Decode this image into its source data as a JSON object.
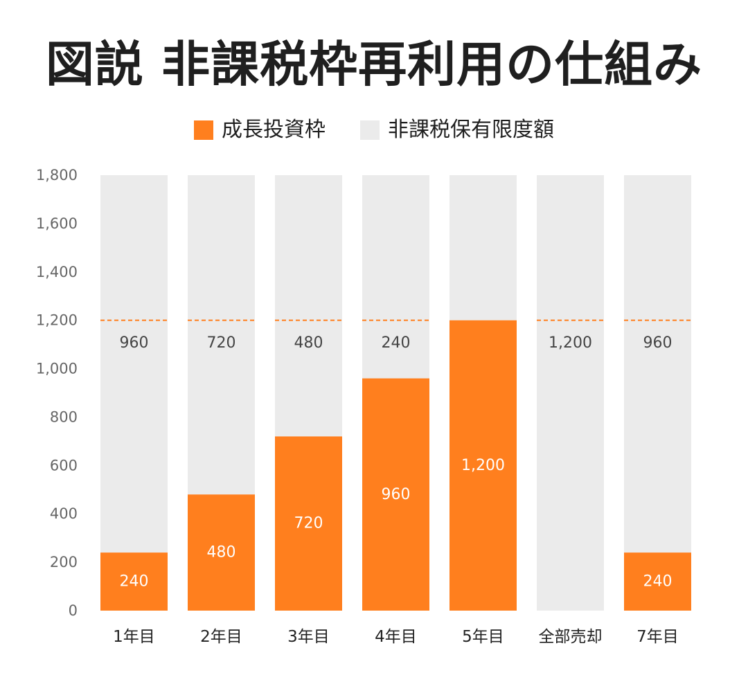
{
  "chart_data": {
    "type": "bar",
    "stacked": true,
    "title": "図説 非課税枠再利用の仕組み",
    "categories": [
      "1年目",
      "2年目",
      "3年目",
      "4年目",
      "5年目",
      "全部売却",
      "7年目"
    ],
    "series": [
      {
        "name": "成長投資枠",
        "color": "#ff7f1e",
        "values": [
          240,
          480,
          720,
          960,
          1200,
          0,
          240
        ],
        "labels": [
          "240",
          "480",
          "720",
          "960",
          "1,200",
          "",
          "240"
        ]
      },
      {
        "name": "非課税保有限度額",
        "color": "#ebebeb",
        "values": [
          1560,
          1320,
          1080,
          840,
          600,
          1800,
          1560
        ],
        "labels": [
          "960",
          "720",
          "480",
          "240",
          "",
          "1,200",
          "960"
        ]
      }
    ],
    "limit_line": {
      "value": 1200,
      "color": "#ff7f1e",
      "style": "dashed"
    },
    "ylim": [
      0,
      1800
    ],
    "yticks": [
      "0",
      "200",
      "400",
      "600",
      "800",
      "1,000",
      "1,200",
      "1,400",
      "1,600",
      "1,800"
    ],
    "xlabel": "",
    "ylabel": "",
    "grid": false,
    "legend_position": "top-center"
  }
}
